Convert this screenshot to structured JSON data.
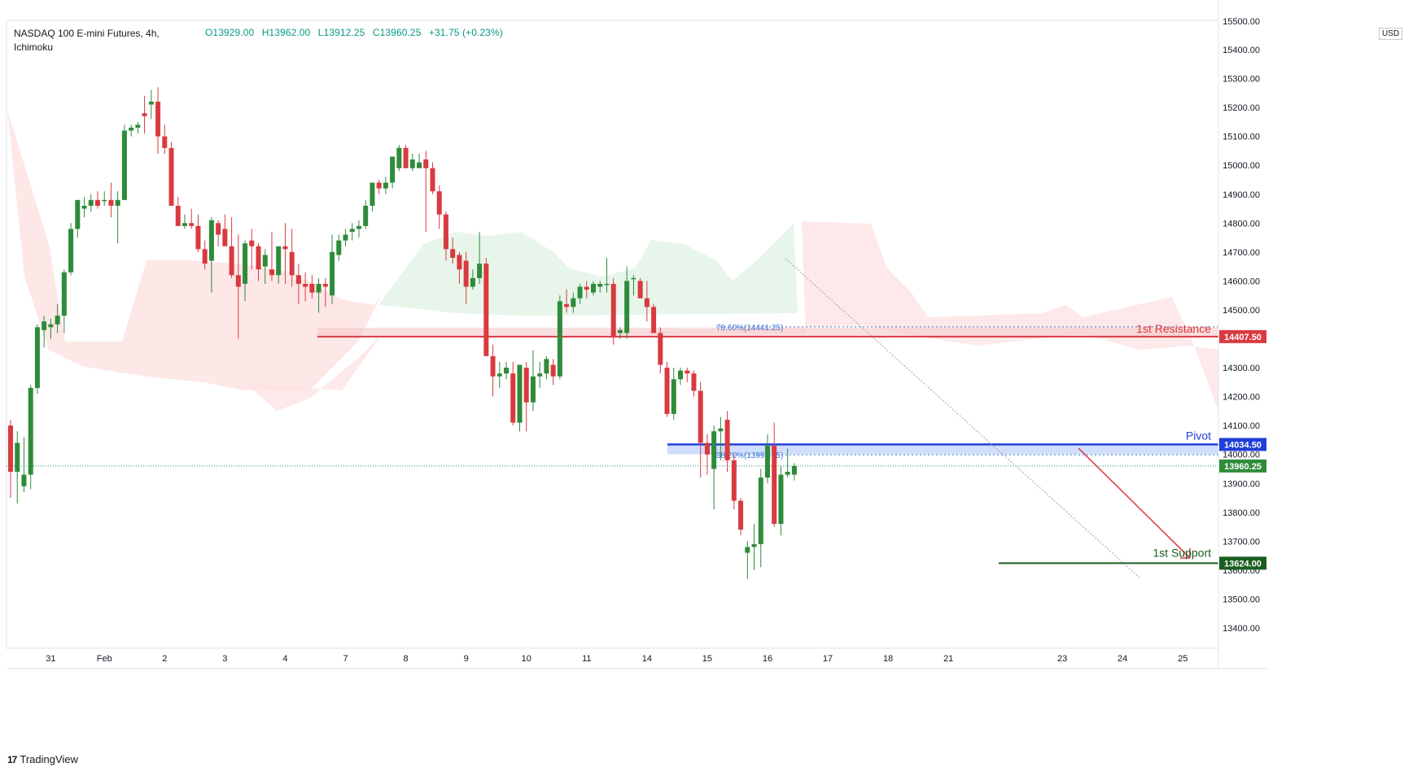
{
  "header": {
    "symbol": "NASDAQ 100 E-mini Futures, 4h,",
    "indicator": "Ichimoku",
    "open": "O13929.00",
    "high": "H13962.00",
    "low": "L13912.25",
    "close": "C13960.25",
    "change": "+31.75 (+0.23%)"
  },
  "currency_label": "USD",
  "brand": "TradingView",
  "colors": {
    "bull": "#2e8b3a",
    "bear": "#d93a3f",
    "resistance": "#d93a3f",
    "pivot": "#1f3fd6",
    "support": "#1b5e20",
    "cloud_bear": "#fde3e3",
    "cloud_bull": "#e6f4e8",
    "fib": "#3b78d6"
  },
  "chart_data": {
    "type": "candlestick",
    "y_axis": {
      "range": [
        13300,
        15500
      ],
      "ticks": [
        15400,
        15300,
        15200,
        15100,
        15000,
        14900,
        14800,
        14700,
        14600,
        14500,
        14400,
        14300,
        14200,
        14100,
        14000,
        13900,
        13800,
        13700,
        13600,
        13500,
        13400
      ],
      "tick_labels": [
        "15400.00",
        "15300.00",
        "15200.00",
        "15100.00",
        "15000.00",
        "14900.00",
        "14800.00",
        "14700.00",
        "14600.00",
        "14500.00",
        "14400.00",
        "14300.00",
        "14200.00",
        "14100.00",
        "14000.00",
        "13900.00",
        "13800.00",
        "13700.00",
        "13600.00",
        "13500.00",
        "13400.00"
      ]
    },
    "x_axis": {
      "labels": [
        "31",
        "Feb",
        "2",
        "3",
        "4",
        "7",
        "8",
        "9",
        "10",
        "11",
        "14",
        "15",
        "16",
        "17",
        "18",
        "21",
        "23",
        "24",
        "25"
      ],
      "label_bar_index": [
        6,
        14,
        23,
        32,
        41,
        50,
        59,
        68,
        77,
        86,
        95,
        104,
        113,
        122,
        131,
        140,
        157,
        166,
        175
      ]
    },
    "candles_ohlc": [
      [
        14100,
        14120,
        13850,
        13940
      ],
      [
        13940,
        14080,
        13830,
        14040
      ],
      [
        13890,
        14060,
        13870,
        13930
      ],
      [
        13930,
        14240,
        13880,
        14230
      ],
      [
        14230,
        14450,
        14210,
        14440
      ],
      [
        14430,
        14480,
        14370,
        14460
      ],
      [
        14440,
        14470,
        14400,
        14450
      ],
      [
        14450,
        14520,
        14420,
        14480
      ],
      [
        14480,
        14640,
        14420,
        14630
      ],
      [
        14630,
        14800,
        14620,
        14780
      ],
      [
        14780,
        14880,
        14750,
        14880
      ],
      [
        14850,
        14890,
        14820,
        14860
      ],
      [
        14860,
        14900,
        14840,
        14880
      ],
      [
        14880,
        14910,
        14850,
        14860
      ],
      [
        14880,
        14910,
        14860,
        14880
      ],
      [
        14880,
        14940,
        14820,
        14860
      ],
      [
        14860,
        14910,
        14730,
        14880
      ],
      [
        14880,
        15140,
        14880,
        15120
      ],
      [
        15120,
        15140,
        15100,
        15130
      ],
      [
        15130,
        15150,
        15110,
        15140
      ],
      [
        15180,
        15240,
        15110,
        15170
      ],
      [
        15210,
        15260,
        15160,
        15220
      ],
      [
        15220,
        15270,
        15040,
        15100
      ],
      [
        15100,
        15140,
        15040,
        15060
      ],
      [
        15060,
        15080,
        14860,
        14860
      ],
      [
        14860,
        14890,
        14790,
        14790
      ],
      [
        14790,
        14830,
        14780,
        14800
      ],
      [
        14800,
        14850,
        14780,
        14790
      ],
      [
        14790,
        14830,
        14700,
        14710
      ],
      [
        14710,
        14740,
        14640,
        14660
      ],
      [
        14670,
        14820,
        14560,
        14810
      ],
      [
        14800,
        14810,
        14720,
        14760
      ],
      [
        14780,
        14830,
        14740,
        14720
      ],
      [
        14720,
        14820,
        14610,
        14620
      ],
      [
        14620,
        14760,
        14400,
        14580
      ],
      [
        14590,
        14740,
        14530,
        14730
      ],
      [
        14740,
        14780,
        14640,
        14720
      ],
      [
        14720,
        14730,
        14600,
        14640
      ],
      [
        14650,
        14710,
        14590,
        14690
      ],
      [
        14640,
        14770,
        14600,
        14620
      ],
      [
        14620,
        14710,
        14590,
        14720
      ],
      [
        14720,
        14800,
        14590,
        14710
      ],
      [
        14700,
        14780,
        14580,
        14620
      ],
      [
        14620,
        14660,
        14520,
        14590
      ],
      [
        14590,
        14630,
        14530,
        14580
      ],
      [
        14590,
        14620,
        14540,
        14560
      ],
      [
        14560,
        14610,
        14490,
        14590
      ],
      [
        14590,
        14610,
        14510,
        14580
      ],
      [
        14550,
        14760,
        14520,
        14700
      ],
      [
        14690,
        14760,
        14670,
        14740
      ],
      [
        14740,
        14780,
        14720,
        14760
      ],
      [
        14770,
        14800,
        14740,
        14780
      ],
      [
        14780,
        14810,
        14750,
        14790
      ],
      [
        14790,
        14880,
        14780,
        14860
      ],
      [
        14860,
        14940,
        14840,
        14940
      ],
      [
        14940,
        14950,
        14900,
        14920
      ],
      [
        14920,
        14960,
        14900,
        14940
      ],
      [
        14940,
        15020,
        14920,
        15030
      ],
      [
        14990,
        15070,
        14980,
        15060
      ],
      [
        15060,
        15070,
        14990,
        14990
      ],
      [
        14990,
        15040,
        14980,
        15020
      ],
      [
        14990,
        15040,
        14990,
        15010
      ],
      [
        15020,
        15050,
        14770,
        14990
      ],
      [
        14990,
        15010,
        14900,
        14910
      ],
      [
        14910,
        14930,
        14780,
        14830
      ],
      [
        14830,
        14840,
        14670,
        14710
      ],
      [
        14710,
        14750,
        14660,
        14680
      ],
      [
        14690,
        14700,
        14590,
        14640
      ],
      [
        14670,
        14700,
        14520,
        14580
      ],
      [
        14580,
        14640,
        14570,
        14610
      ],
      [
        14610,
        14770,
        14590,
        14660
      ],
      [
        14660,
        14680,
        14350,
        14340
      ],
      [
        14340,
        14380,
        14200,
        14270
      ],
      [
        14270,
        14320,
        14230,
        14280
      ],
      [
        14280,
        14320,
        14260,
        14300
      ],
      [
        14280,
        14320,
        14100,
        14110
      ],
      [
        14110,
        14300,
        14080,
        14310
      ],
      [
        14300,
        14320,
        14080,
        14180
      ],
      [
        14180,
        14360,
        14150,
        14270
      ],
      [
        14270,
        14320,
        14230,
        14280
      ],
      [
        14280,
        14340,
        14260,
        14330
      ],
      [
        14310,
        14330,
        14240,
        14270
      ],
      [
        14270,
        14550,
        14260,
        14530
      ],
      [
        14520,
        14570,
        14490,
        14510
      ],
      [
        14510,
        14560,
        14490,
        14540
      ],
      [
        14540,
        14590,
        14520,
        14580
      ],
      [
        14580,
        14600,
        14540,
        14570
      ],
      [
        14560,
        14600,
        14550,
        14590
      ],
      [
        14580,
        14600,
        14560,
        14590
      ],
      [
        14590,
        14680,
        14560,
        14590
      ],
      [
        14590,
        14610,
        14380,
        14410
      ],
      [
        14420,
        14440,
        14400,
        14430
      ],
      [
        14420,
        14650,
        14400,
        14600
      ],
      [
        14610,
        14620,
        14550,
        14610
      ],
      [
        14600,
        14610,
        14540,
        14540
      ],
      [
        14540,
        14600,
        14460,
        14510
      ],
      [
        14510,
        14520,
        14420,
        14420
      ],
      [
        14420,
        14440,
        14280,
        14310
      ],
      [
        14300,
        14320,
        14130,
        14140
      ],
      [
        14140,
        14300,
        14120,
        14260
      ],
      [
        14260,
        14300,
        14240,
        14290
      ],
      [
        14290,
        14300,
        14250,
        14280
      ],
      [
        14280,
        14290,
        14200,
        14220
      ],
      [
        14220,
        14250,
        13920,
        14040
      ],
      [
        14040,
        14070,
        13930,
        14000
      ],
      [
        13950,
        14100,
        13810,
        14080
      ],
      [
        14080,
        14130,
        13980,
        14090
      ],
      [
        14120,
        14150,
        13940,
        13980
      ],
      [
        13980,
        14000,
        13810,
        13840
      ],
      [
        13840,
        13850,
        13720,
        13740
      ],
      [
        13660,
        13700,
        13570,
        13680
      ],
      [
        13680,
        13760,
        13600,
        13690
      ],
      [
        13690,
        13950,
        13610,
        13920
      ],
      [
        13920,
        14070,
        13900,
        14030
      ],
      [
        14030,
        14110,
        13750,
        13760
      ],
      [
        13760,
        13960,
        13720,
        13930
      ],
      [
        13930,
        14020,
        13920,
        13940
      ],
      [
        13930,
        13970,
        13910,
        13960
      ]
    ],
    "levels": {
      "resistance": {
        "label": "1st Resistance",
        "value": 14407.5,
        "price_label": "14407.50"
      },
      "pivot": {
        "label": "Pivot",
        "value": 14034.5,
        "price_label": "14034.50"
      },
      "support": {
        "label": "1st Support",
        "value": 13624.0,
        "price_label": "13624.00"
      },
      "last_price": {
        "value": 13960.25,
        "price_label": "13960.25"
      }
    },
    "fibonacci": [
      {
        "label": "78.60%(14441.25)",
        "value": 14441.25
      },
      {
        "label": "38.20%(13998.75)",
        "value": 13998.75
      }
    ]
  }
}
